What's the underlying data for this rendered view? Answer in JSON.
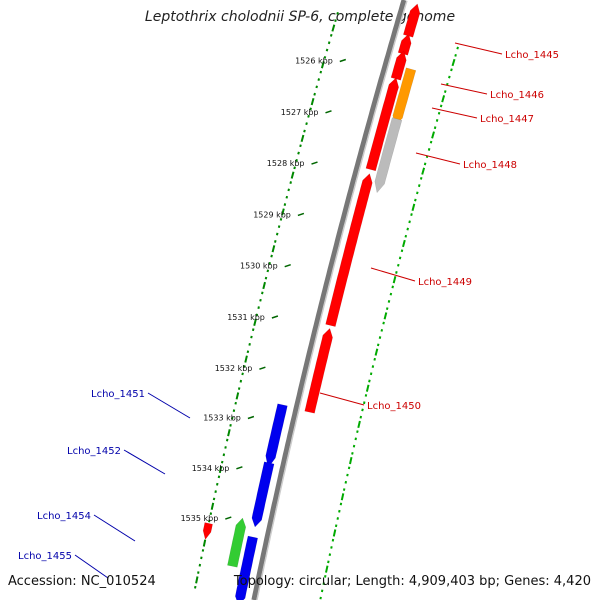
{
  "title": "Leptothrix cholodnii SP-6, complete genome",
  "footer": {
    "accession": "Accession: NC_010524",
    "topology": "Topology: circular; Length: 4,909,403 bp; Genes: 4,420"
  },
  "ticks": [
    {
      "label": "1526 kbp"
    },
    {
      "label": "1527 kbp"
    },
    {
      "label": "1528 kbp"
    },
    {
      "label": "1529 kbp"
    },
    {
      "label": "1530 kbp"
    },
    {
      "label": "1531 kbp"
    },
    {
      "label": "1532 kbp"
    },
    {
      "label": "1533 kbp"
    },
    {
      "label": "1534 kbp"
    },
    {
      "label": "1535 kbp"
    }
  ],
  "genes": [
    {
      "label": "Lcho_1445",
      "color": "#ff0000",
      "strand": "reverse",
      "label_color": "#cc0000"
    },
    {
      "label": "Lcho_1446",
      "color": "#ff9900",
      "strand": "forward",
      "label_color": "#cc0000"
    },
    {
      "label": "Lcho_1447",
      "color": "#ff0000",
      "strand": "reverse",
      "label_color": "#cc0000"
    },
    {
      "label": "Lcho_1448",
      "color": "#bbbbbb",
      "strand": "forward",
      "label_color": "#cc0000"
    },
    {
      "label": "Lcho_1449",
      "color": "#ff0000",
      "strand": "reverse",
      "label_color": "#cc0000"
    },
    {
      "label": "Lcho_1450",
      "color": "#ff0000",
      "strand": "reverse",
      "label_color": "#cc0000"
    },
    {
      "label": "Lcho_1451",
      "color": "#0000ee",
      "strand": "forward",
      "label_color": "#0000aa"
    },
    {
      "label": "Lcho_1452",
      "color": "#0000ee",
      "strand": "forward",
      "label_color": "#0000aa"
    },
    {
      "label": "Lcho_1454",
      "color": "#33cc33",
      "strand": "reverse",
      "label_color": "#0000aa"
    },
    {
      "label": "Lcho_1455",
      "color": "#0000ee",
      "strand": "forward",
      "label_color": "#0000aa"
    }
  ],
  "colors": {
    "backbone": "#777777",
    "gc_inner": "#008800",
    "gc_outer": "#00aa00",
    "label_line_forward": "#0000aa",
    "label_line_reverse": "#cc0000"
  }
}
